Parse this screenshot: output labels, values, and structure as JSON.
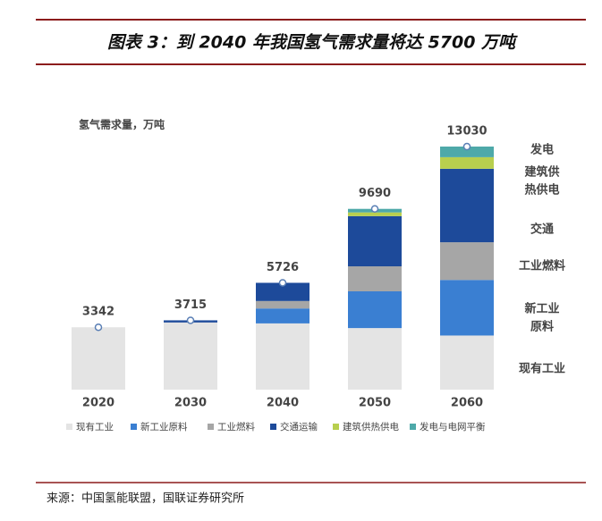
{
  "title": "图表 3：到 2040 年我国氢气需求量将达 5700 万吨",
  "source": "来源：中国氢能联盟，国联证券研究所",
  "chart_data": {
    "type": "stacked_bar",
    "ylabel": "氢气需求量，万吨",
    "categories": [
      "2020",
      "2030",
      "2040",
      "2050",
      "2060"
    ],
    "series": [
      {
        "name": "现有工业",
        "color": "#e4e4e4",
        "values": [
          3342,
          3600,
          3550,
          3300,
          2900
        ]
      },
      {
        "name": "新工业原料",
        "color": "#3a7fd2",
        "values": [
          0,
          0,
          800,
          1970,
          2980
        ]
      },
      {
        "name": "工业燃料",
        "color": "#a6a6a6",
        "values": [
          0,
          0,
          400,
          1340,
          2020
        ]
      },
      {
        "name": "交通运输",
        "color": "#1d4a9a",
        "values": [
          0,
          115,
          976,
          2690,
          3940
        ]
      },
      {
        "name": "建筑供热供电",
        "color": "#b8cf4e",
        "values": [
          0,
          0,
          0,
          200,
          620
        ]
      },
      {
        "name": "发电与电网平衡",
        "color": "#4ea9a9",
        "values": [
          0,
          0,
          0,
          190,
          570
        ]
      }
    ],
    "totals": [
      3342,
      3715,
      5726,
      9690,
      13030
    ],
    "annotations": [
      [
        "发电"
      ],
      [
        "建筑供",
        "热供电"
      ],
      [
        "交通"
      ],
      [
        "工业燃料"
      ],
      [
        "新工业",
        "原料"
      ],
      [
        "现有工业"
      ]
    ]
  }
}
